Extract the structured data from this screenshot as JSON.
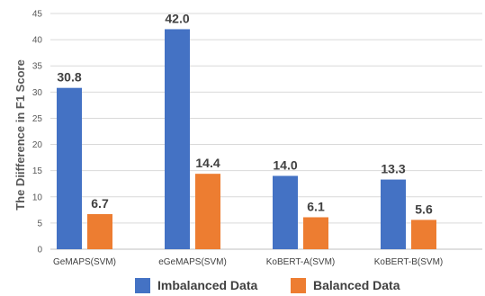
{
  "chart_data": {
    "type": "bar",
    "title": "",
    "xlabel": "",
    "ylabel": "The Diifference in F1 Score",
    "ylim": [
      0,
      45
    ],
    "yticks": [
      0,
      5,
      10,
      15,
      20,
      25,
      30,
      35,
      40,
      45
    ],
    "grid": true,
    "legend_position": "bottom",
    "categories": [
      "GeMAPS(SVM)",
      "eGeMAPS(SVM)",
      "KoBERT-A(SVM)",
      "KoBERT-B(SVM)"
    ],
    "series": [
      {
        "name": "Imbalanced Data",
        "color": "#4472c4",
        "values": [
          30.8,
          42.0,
          14.0,
          13.3
        ]
      },
      {
        "name": "Balanced Data",
        "color": "#ed7d31",
        "values": [
          6.7,
          14.4,
          6.1,
          5.6
        ]
      }
    ]
  }
}
